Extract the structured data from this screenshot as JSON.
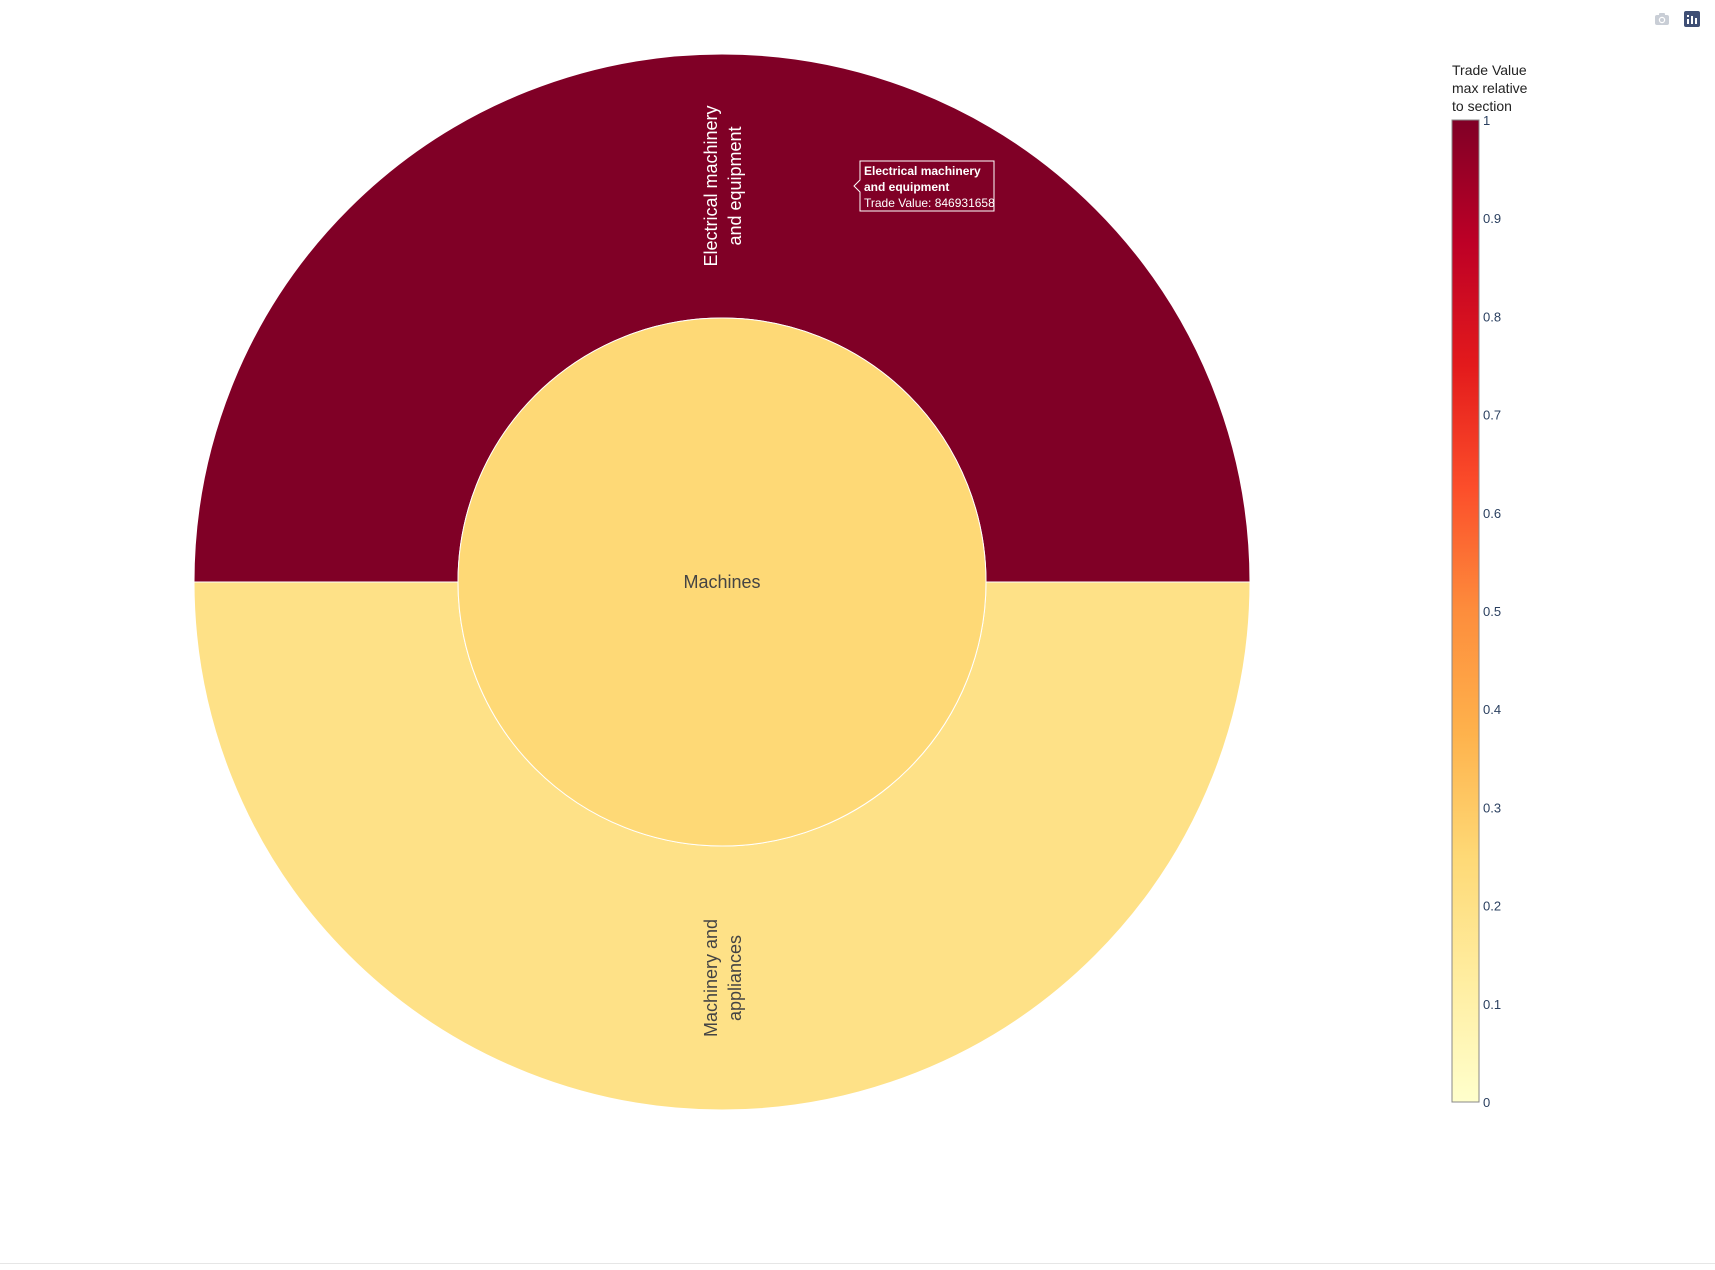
{
  "chart_data": {
    "type": "sunburst",
    "colorbar": {
      "title": [
        "Trade Value",
        "max relative",
        "to section"
      ],
      "range": [
        0,
        1
      ],
      "ticks": [
        "0",
        "0.1",
        "0.2",
        "0.3",
        "0.4",
        "0.5",
        "0.6",
        "0.7",
        "0.8",
        "0.9",
        "1"
      ],
      "colorscale": [
        [
          0.0,
          "#ffffcc"
        ],
        [
          0.125,
          "#ffeda0"
        ],
        [
          0.25,
          "#fed976"
        ],
        [
          0.375,
          "#feb24c"
        ],
        [
          0.5,
          "#fd8d3c"
        ],
        [
          0.625,
          "#fc4e2a"
        ],
        [
          0.75,
          "#e31a1c"
        ],
        [
          0.875,
          "#bd0026"
        ],
        [
          1.0,
          "#800026"
        ]
      ]
    },
    "root": {
      "label": "Machines",
      "color_value": 0.25
    },
    "children": [
      {
        "label": "Electrical machinery and equipment",
        "lines": [
          "Electrical machinery",
          "and equipment"
        ],
        "share": 0.5,
        "color_value": 1.0
      },
      {
        "label": "Machinery and appliances",
        "lines": [
          "Machinery and",
          "appliances"
        ],
        "share": 0.5,
        "color_value": 0.2
      }
    ],
    "hover": {
      "title_lines": [
        "Electrical machinery",
        "and equipment"
      ],
      "value_line": "Trade Value: 846931658"
    }
  },
  "modebar": {
    "icons": [
      "camera-icon",
      "plotly-logo-icon"
    ]
  },
  "colors": {
    "segment_border": "#ffffff",
    "label_dark": "#444444",
    "label_light": "#ffffff",
    "tick_text": "#2a3f5f"
  }
}
